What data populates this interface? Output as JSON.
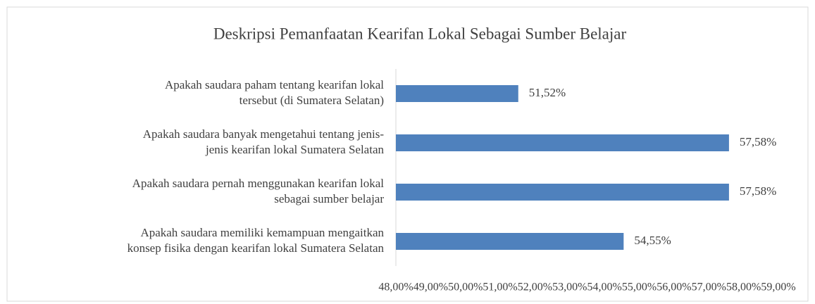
{
  "chart_data": {
    "type": "hbar",
    "title": "Deskripsi Pemanfaatan Kearifan Lokal Sebagai Sumber Belajar",
    "categories": [
      "Apakah saudara paham tentang kearifan lokal\ntersebut (di Sumatera Selatan)",
      "Apakah saudara banyak mengetahui  tentang jenis-\njenis kearifan lokal Sumatera Selatan",
      "Apakah saudara pernah menggunakan kearifan lokal\nsebagai sumber belajar",
      "Apakah saudara memiliki kemampuan mengaitkan\nkonsep fisika dengan kearifan lokal Sumatera Selatan"
    ],
    "values": [
      51.52,
      57.58,
      57.58,
      54.55
    ],
    "value_labels": [
      "51,52%",
      "57,58%",
      "57,58%",
      "54,55%"
    ],
    "color": "#4f81bd",
    "xlim": [
      48,
      59
    ],
    "xticks": [
      {
        "value": 48,
        "label": "48,00%"
      },
      {
        "value": 49,
        "label": "49,00%"
      },
      {
        "value": 50,
        "label": "50,00%"
      },
      {
        "value": 51,
        "label": "51,00%"
      },
      {
        "value": 52,
        "label": "52,00%"
      },
      {
        "value": 53,
        "label": "53,00%"
      },
      {
        "value": 54,
        "label": "54,00%"
      },
      {
        "value": 55,
        "label": "55,00%"
      },
      {
        "value": 56,
        "label": "56,00%"
      },
      {
        "value": 57,
        "label": "57,00%"
      },
      {
        "value": 58,
        "label": "58,00%"
      },
      {
        "value": 59,
        "label": "59,00%"
      }
    ],
    "grid": false
  }
}
